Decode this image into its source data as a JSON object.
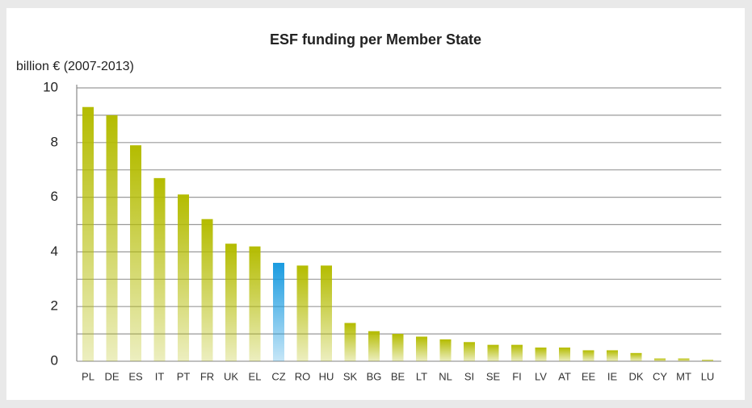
{
  "chart_data": {
    "type": "bar",
    "title": "ESF funding per Member State",
    "y_label": "billion € (2007-2013)",
    "categories": [
      "PL",
      "DE",
      "ES",
      "IT",
      "PT",
      "FR",
      "UK",
      "EL",
      "CZ",
      "RO",
      "HU",
      "SK",
      "BG",
      "BE",
      "LT",
      "NL",
      "SI",
      "SE",
      "FI",
      "LV",
      "AT",
      "EE",
      "IE",
      "DK",
      "CY",
      "MT",
      "LU"
    ],
    "values": [
      9.3,
      9.0,
      7.9,
      6.7,
      6.1,
      5.2,
      4.3,
      4.2,
      3.6,
      3.5,
      3.5,
      1.4,
      1.1,
      1.0,
      0.9,
      0.8,
      0.7,
      0.6,
      0.6,
      0.5,
      0.5,
      0.4,
      0.4,
      0.3,
      0.1,
      0.1,
      0.05
    ],
    "colors": [
      "#b4bc00",
      "#b4bc00",
      "#b4bc00",
      "#b4bc00",
      "#b4bc00",
      "#b4bc00",
      "#b4bc00",
      "#b4bc00",
      "#1a9be0",
      "#b4bc00",
      "#b4bc00",
      "#b4bc00",
      "#b4bc00",
      "#b4bc00",
      "#b4bc00",
      "#b4bc00",
      "#b4bc00",
      "#b4bc00",
      "#b4bc00",
      "#b4bc00",
      "#b4bc00",
      "#b4bc00",
      "#b4bc00",
      "#b4bc00",
      "#b4bc00",
      "#b4bc00",
      "#b4bc00"
    ],
    "ylim": [
      0,
      10
    ],
    "yticks": [
      0,
      2,
      4,
      6,
      8,
      10
    ],
    "minor_yticks": [
      1,
      3,
      5,
      7,
      9
    ],
    "grid": true
  }
}
